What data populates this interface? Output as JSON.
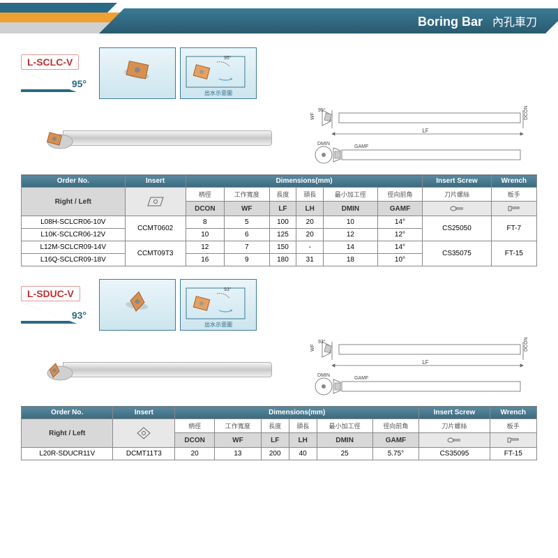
{
  "header": {
    "title_en": "Boring Bar",
    "title_cn": "內孔車刀"
  },
  "colors": {
    "navy": "#2a6a85",
    "orange": "#f0a030",
    "gray": "#d0d0d0",
    "th_bg_top": "#5a8aa0",
    "th_bg_bot": "#3a6a80",
    "badge_border": "#c03030",
    "photo_border": "#3a7a95"
  },
  "groups": [
    {
      "model_code": "L-SCLC-V",
      "angle": "95°",
      "tech_angle": "95°",
      "photo_caption": "出水示意圖",
      "insert_icon_type": "square",
      "table": {
        "top_headers": [
          "Order No.",
          "Insert",
          "Dimensions(mm)",
          "Insert Screw",
          "Wrench"
        ],
        "dim_span": 6,
        "sub1": [
          "Right / Left",
          "",
          "柄徑",
          "工作寬度",
          "長度",
          "頭長",
          "最小加工徑",
          "徑向前角",
          "刀片螺絲",
          "板手"
        ],
        "sub2": [
          "DCON",
          "WF",
          "LF",
          "LH",
          "DMIN",
          "GAMF"
        ],
        "insert_shape": "diamond80",
        "rows": [
          {
            "order": "L08H-SCLCR06-10V",
            "insert": "CCMT0602",
            "dcon": "8",
            "wf": "5",
            "lf": "100",
            "lh": "20",
            "dmin": "10",
            "gamf": "14°",
            "screw": "CS25050",
            "wrench": "FT-7",
            "insert_rowspan": 2,
            "screw_rowspan": 2,
            "wrench_rowspan": 2
          },
          {
            "order": "L10K-SCLCR06-12V",
            "dcon": "10",
            "wf": "6",
            "lf": "125",
            "lh": "20",
            "dmin": "12",
            "gamf": "12°"
          },
          {
            "order": "L12M-SCLCR09-14V",
            "insert": "CCMT09T3",
            "dcon": "12",
            "wf": "7",
            "lf": "150",
            "lh": "-",
            "dmin": "14",
            "gamf": "14°",
            "screw": "CS35075",
            "wrench": "FT-15",
            "insert_rowspan": 2,
            "screw_rowspan": 2,
            "wrench_rowspan": 2
          },
          {
            "order": "L16Q-SCLCR09-18V",
            "dcon": "16",
            "wf": "9",
            "lf": "180",
            "lh": "31",
            "dmin": "18",
            "gamf": "10°"
          }
        ]
      }
    },
    {
      "model_code": "L-SDUC-V",
      "angle": "93°",
      "tech_angle": "93°",
      "photo_caption": "出水示意圖",
      "insert_icon_type": "diamond",
      "table": {
        "top_headers": [
          "Order No.",
          "Insert",
          "Dimensions(mm)",
          "Insert Screw",
          "Wrench"
        ],
        "dim_span": 6,
        "sub1": [
          "Right / Left",
          "",
          "柄徑",
          "工作寬度",
          "長度",
          "頭長",
          "最小加工徑",
          "徑向前角",
          "刀片螺絲",
          "板手"
        ],
        "sub2": [
          "DCON",
          "WF",
          "LF",
          "LH",
          "DMIN",
          "GAMF"
        ],
        "insert_shape": "diamond55",
        "rows": [
          {
            "order": "L20R-SDUCR11V",
            "insert": "DCMT11T3",
            "dcon": "20",
            "wf": "13",
            "lf": "200",
            "lh": "40",
            "dmin": "25",
            "gamf": "5.75°",
            "screw": "CS35095",
            "wrench": "FT-15",
            "insert_rowspan": 1,
            "screw_rowspan": 1,
            "wrench_rowspan": 1
          }
        ]
      }
    }
  ],
  "diagram_labels": {
    "lf": "LF",
    "wf": "WF",
    "dcon": "DCON",
    "dmin": "DMIN",
    "gamf": "GAMF"
  }
}
